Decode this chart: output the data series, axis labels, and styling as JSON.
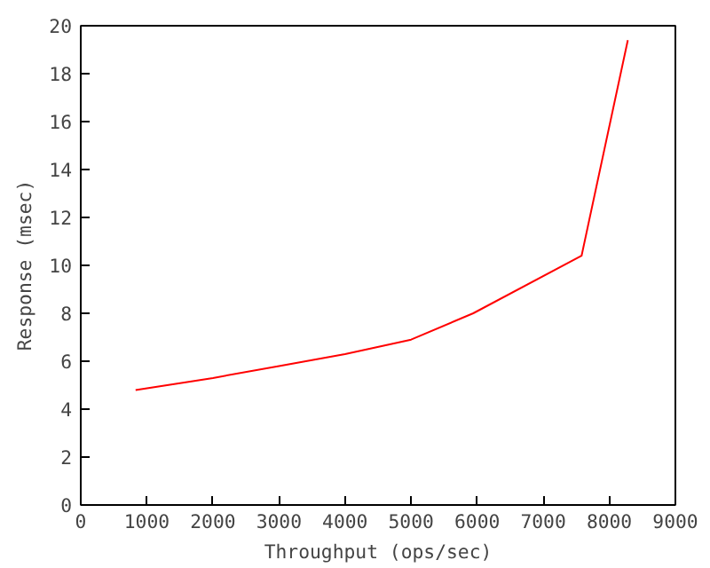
{
  "chart_data": {
    "type": "line",
    "xlabel": "Throughput (ops/sec)",
    "ylabel": "Response (msec)",
    "x": [
      830,
      2000,
      3000,
      4000,
      5000,
      5940,
      7580,
      8280
    ],
    "series": [
      {
        "color": "#ff0000",
        "values": [
          4.8,
          5.3,
          5.8,
          6.3,
          6.9,
          8.0,
          10.4,
          19.4
        ]
      }
    ],
    "xlim": [
      0,
      9000
    ],
    "xticks": [
      0,
      1000,
      2000,
      3000,
      4000,
      5000,
      6000,
      7000,
      8000,
      9000
    ],
    "ylim": [
      0,
      20
    ],
    "yticks": [
      0,
      2,
      4,
      6,
      8,
      10,
      12,
      14,
      16,
      18,
      20
    ],
    "marker": "none",
    "line_style": "solid"
  }
}
